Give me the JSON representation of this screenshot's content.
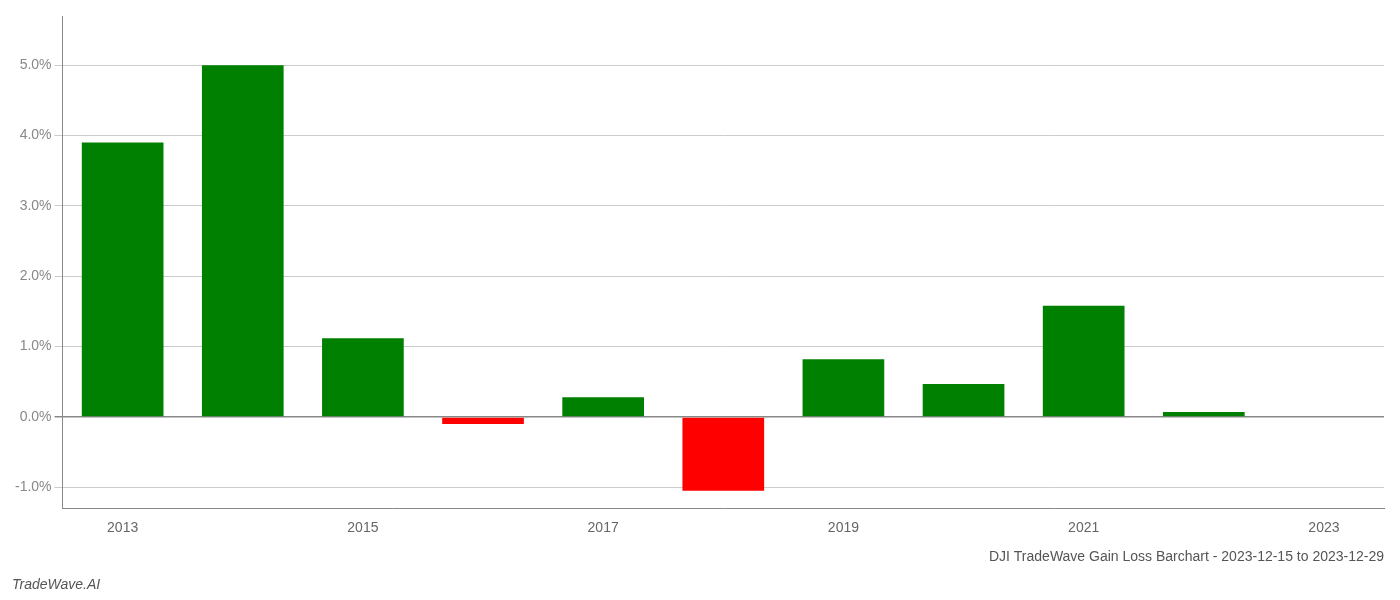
{
  "chart_data": {
    "type": "bar",
    "title": "DJI TradeWave Gain Loss Barchart - 2023-12-15 to 2023-12-29",
    "annotations": [
      "TradeWave.AI"
    ],
    "categories": [
      "2013",
      null,
      "2015",
      null,
      "2017",
      null,
      "2019",
      null,
      "2021",
      null,
      "2023"
    ],
    "values": [
      0.039,
      0.05,
      0.0112,
      -0.001,
      0.0028,
      -0.0105,
      0.0082,
      0.0047,
      0.0158,
      0.0007,
      0.0
    ],
    "colors": [
      "#008000",
      "#008000",
      "#008000",
      "#ff0000",
      "#008000",
      "#ff0000",
      "#008000",
      "#008000",
      "#008000",
      "#008000",
      "#008000"
    ],
    "ylim": [
      -0.013,
      0.057
    ],
    "yticks": [
      {
        "value": -0.01,
        "label": "-1.0%"
      },
      {
        "value": 0.0,
        "label": "0.0%"
      },
      {
        "value": 0.01,
        "label": "1.0%"
      },
      {
        "value": 0.02,
        "label": "2.0%"
      },
      {
        "value": 0.03,
        "label": "3.0%"
      },
      {
        "value": 0.04,
        "label": "4.0%"
      },
      {
        "value": 0.05,
        "label": "5.0%"
      }
    ],
    "grid": true
  }
}
